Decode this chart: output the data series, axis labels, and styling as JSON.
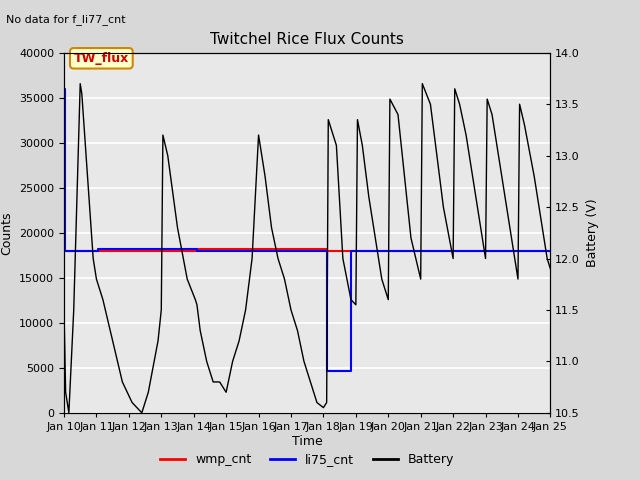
{
  "title": "Twitchel Rice Flux Counts",
  "no_data_text": "No data for f_li77_cnt",
  "xlabel": "Time",
  "ylabel_left": "Counts",
  "ylabel_right": "Battery (V)",
  "ylim_left": [
    0,
    40000
  ],
  "ylim_right": [
    10.5,
    14.0
  ],
  "yticks_left": [
    0,
    5000,
    10000,
    15000,
    20000,
    25000,
    30000,
    35000,
    40000
  ],
  "yticks_right": [
    10.5,
    11.0,
    11.5,
    12.0,
    12.5,
    13.0,
    13.5,
    14.0
  ],
  "xtick_labels": [
    "Jan 10",
    "Jan 11",
    "Jan 12",
    "Jan 13",
    "Jan 14",
    "Jan 15",
    "Jan 16",
    "Jan 17",
    "Jan 18",
    "Jan 19",
    "Jan 20",
    "Jan 21",
    "Jan 22",
    "Jan 23",
    "Jan 24",
    "Jan 25"
  ],
  "bg_color": "#d8d8d8",
  "plot_bg_color": "#e8e8e8",
  "annotation_box": {
    "text": "TW_flux",
    "facecolor": "#ffffcc",
    "edgecolor": "#cc8800",
    "textcolor": "#cc0000"
  },
  "wmp_cnt_color": "#ff0000",
  "li75_cnt_color": "#0000ff",
  "battery_color": "#000000",
  "li75_x": [
    0.0,
    0.02,
    0.02,
    1.05,
    1.05,
    4.1,
    4.1,
    8.1,
    8.1,
    8.85,
    8.85,
    15.0
  ],
  "li75_y": [
    36000,
    36000,
    18000,
    18000,
    18200,
    18200,
    18000,
    18000,
    4700,
    4700,
    18000,
    18000
  ],
  "wmp_x": [
    0.0,
    4.1,
    4.1,
    8.1,
    8.1,
    15.0
  ],
  "wmp_y": [
    18000,
    18000,
    18200,
    18200,
    18000,
    18000
  ],
  "batt_x": [
    0.0,
    0.05,
    0.15,
    0.3,
    0.5,
    0.55,
    0.9,
    1.0,
    1.05,
    1.2,
    1.5,
    1.8,
    2.1,
    2.4,
    2.5,
    2.6,
    2.9,
    3.0,
    3.05,
    3.2,
    3.5,
    3.8,
    4.05,
    4.1,
    4.2,
    4.4,
    4.6,
    4.8,
    5.0,
    5.2,
    5.4,
    5.6,
    5.8,
    6.0,
    6.2,
    6.4,
    6.6,
    6.8,
    7.0,
    7.2,
    7.4,
    7.6,
    7.8,
    8.0,
    8.1,
    8.15,
    8.4,
    8.6,
    8.85,
    9.0,
    9.05,
    9.2,
    9.4,
    9.6,
    9.8,
    10.0,
    10.05,
    10.3,
    10.5,
    10.7,
    11.0,
    11.05,
    11.3,
    11.5,
    11.7,
    12.0,
    12.05,
    12.2,
    12.4,
    12.6,
    12.8,
    13.0,
    13.05,
    13.2,
    13.4,
    13.6,
    13.8,
    14.0,
    14.05,
    14.2,
    14.5,
    14.7,
    14.9,
    15.0
  ],
  "batt_y": [
    11.5,
    10.7,
    10.5,
    11.5,
    13.7,
    13.6,
    12.0,
    11.8,
    11.75,
    11.6,
    11.2,
    10.8,
    10.6,
    10.5,
    10.6,
    10.7,
    11.2,
    11.5,
    13.2,
    13.0,
    12.3,
    11.8,
    11.6,
    11.55,
    11.3,
    11.0,
    10.8,
    10.8,
    10.7,
    11.0,
    11.2,
    11.5,
    12.0,
    13.2,
    12.8,
    12.3,
    12.0,
    11.8,
    11.5,
    11.3,
    11.0,
    10.8,
    10.6,
    10.55,
    10.6,
    13.35,
    13.1,
    12.0,
    11.6,
    11.55,
    13.35,
    13.1,
    12.6,
    12.2,
    11.8,
    11.6,
    13.55,
    13.4,
    12.8,
    12.2,
    11.8,
    13.7,
    13.5,
    13.0,
    12.5,
    12.0,
    13.65,
    13.5,
    13.2,
    12.8,
    12.4,
    12.0,
    13.55,
    13.4,
    13.0,
    12.6,
    12.2,
    11.8,
    13.5,
    13.3,
    12.8,
    12.4,
    12.0,
    11.9
  ]
}
